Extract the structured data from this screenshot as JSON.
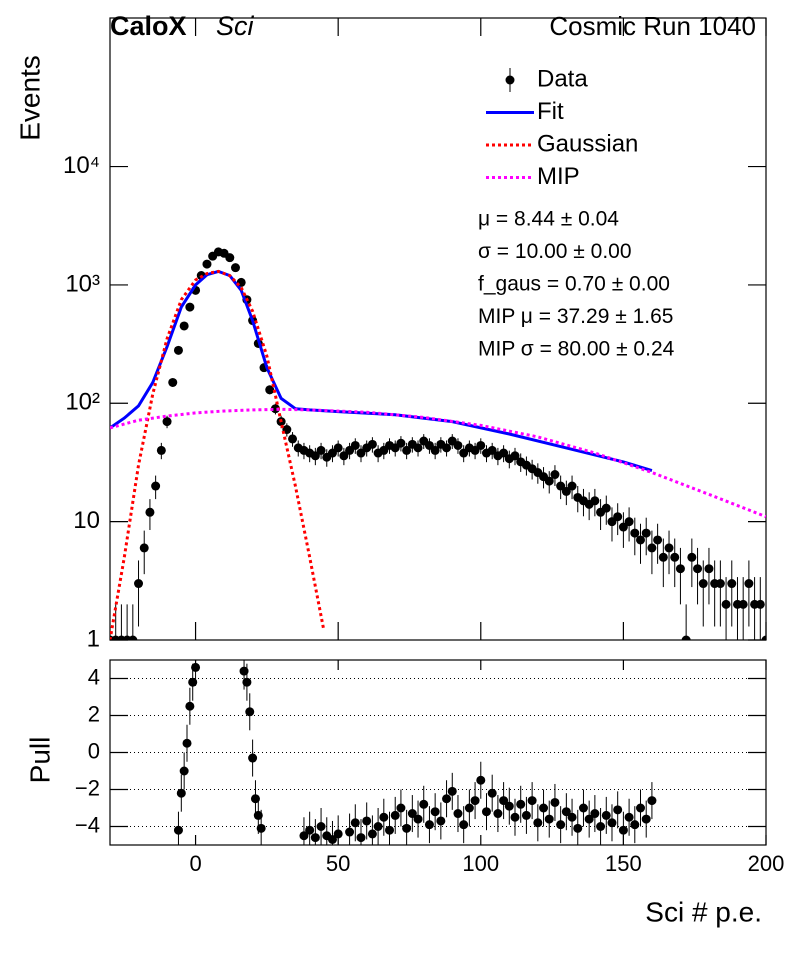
{
  "chart_data": [
    {
      "type": "scatter",
      "label_bold": "CaloX",
      "label_italic": "Sci",
      "run_label": "Cosmic Run 1040",
      "ylabel": "Events",
      "log_y": true,
      "xlim": [
        -30,
        200
      ],
      "ylim": [
        1,
        180000
      ],
      "yticks": [
        1,
        10,
        {
          "value": 100,
          "label": "10²"
        },
        {
          "value": 1000,
          "label": "10³"
        },
        {
          "value": 10000,
          "label": "10⁴"
        }
      ],
      "annotations": [
        "μ = 8.44 ± 0.04",
        "σ = 10.00 ± 0.00",
        "f_gaus = 0.70 ± 0.00",
        "MIP μ = 37.29 ± 1.65",
        "MIP σ = 80.00 ± 0.24"
      ],
      "legend": "upper right",
      "series": [
        {
          "name": "Data",
          "color": "#000000",
          "style": "points",
          "x": [
            -30,
            -28,
            -26,
            -24,
            -22,
            -20,
            -18,
            -16,
            -14,
            -12,
            -10,
            -8,
            -6,
            -4,
            -2,
            0,
            2,
            4,
            6,
            8,
            10,
            12,
            14,
            16,
            18,
            20,
            22,
            24,
            26,
            28,
            30,
            32,
            34,
            36,
            38,
            40,
            42,
            44,
            46,
            48,
            50,
            52,
            54,
            56,
            58,
            60,
            62,
            64,
            66,
            68,
            70,
            72,
            74,
            76,
            78,
            80,
            82,
            84,
            86,
            88,
            90,
            92,
            94,
            96,
            98,
            100,
            102,
            104,
            106,
            108,
            110,
            112,
            114,
            116,
            118,
            120,
            122,
            124,
            126,
            128,
            130,
            132,
            134,
            136,
            138,
            140,
            142,
            144,
            146,
            148,
            150,
            152,
            154,
            156,
            158,
            160,
            162,
            164,
            166,
            168,
            170,
            172,
            174,
            176,
            178,
            180,
            182,
            184,
            186,
            188,
            190,
            192,
            194,
            196,
            198,
            200
          ],
          "values": [
            1,
            1,
            1,
            1,
            1,
            3,
            6,
            12,
            20,
            40,
            70,
            150,
            280,
            450,
            650,
            900,
            1200,
            1500,
            1750,
            1900,
            1850,
            1700,
            1400,
            1050,
            750,
            500,
            320,
            200,
            130,
            90,
            70,
            60,
            50,
            42,
            40,
            38,
            36,
            40,
            35,
            38,
            42,
            36,
            40,
            44,
            38,
            42,
            45,
            38,
            40,
            44,
            42,
            46,
            40,
            45,
            42,
            48,
            44,
            40,
            45,
            42,
            48,
            44,
            38,
            42,
            40,
            44,
            38,
            40,
            36,
            38,
            34,
            36,
            32,
            30,
            28,
            26,
            24,
            22,
            25,
            20,
            18,
            20,
            16,
            15,
            14,
            15,
            12,
            13,
            10,
            11,
            9,
            10,
            8,
            7,
            8,
            6,
            7,
            5,
            6,
            5,
            4,
            1,
            5,
            4,
            3,
            4,
            3,
            3,
            2,
            3,
            2,
            2,
            3,
            2,
            2,
            1
          ],
          "errors": [
            1,
            1,
            1,
            1,
            1,
            1.7,
            2.4,
            3.5,
            4.5,
            6.3,
            8.4,
            12,
            17,
            21,
            25,
            30,
            35,
            39,
            42,
            44,
            43,
            41,
            37,
            32,
            27,
            22,
            18,
            14,
            11,
            9.5,
            8.4,
            7.7,
            7.1,
            6.5,
            6.3,
            6.2,
            6,
            6.3,
            5.9,
            6.2,
            6.5,
            6,
            6.3,
            6.6,
            6.2,
            6.5,
            6.7,
            6.2,
            6.3,
            6.6,
            6.5,
            6.8,
            6.3,
            6.7,
            6.5,
            6.9,
            6.6,
            6.3,
            6.7,
            6.5,
            6.9,
            6.6,
            6.2,
            6.5,
            6.3,
            6.6,
            6.2,
            6.3,
            6,
            6.2,
            5.8,
            6,
            5.7,
            5.5,
            5.3,
            5.1,
            4.9,
            4.7,
            5,
            4.5,
            4.2,
            4.5,
            4,
            3.9,
            3.7,
            3.9,
            3.5,
            3.6,
            3.2,
            3.3,
            3,
            3.2,
            2.8,
            2.6,
            2.8,
            2.4,
            2.6,
            2.2,
            2.4,
            2.2,
            2,
            1,
            2.2,
            2,
            1.7,
            2,
            1.7,
            1.7,
            1.4,
            1.7,
            1.4,
            1.4,
            1.7,
            1.4,
            1.4,
            1
          ]
        },
        {
          "name": "Fit",
          "color": "#0000ff",
          "style": "solid",
          "x": [
            -30,
            -25,
            -20,
            -15,
            -10,
            -5,
            0,
            4,
            8,
            12,
            16,
            20,
            25,
            30,
            35,
            40,
            50,
            70,
            90,
            110,
            130,
            150,
            160
          ],
          "values": [
            62,
            75,
            95,
            150,
            300,
            650,
            1000,
            1220,
            1300,
            1200,
            900,
            500,
            200,
            110,
            90,
            88,
            85,
            80,
            70,
            55,
            42,
            32,
            27
          ]
        },
        {
          "name": "Gaussian",
          "color": "#ff0000",
          "style": "dotted",
          "x": [
            -30,
            -25,
            -20,
            -15,
            -10,
            -5,
            0,
            4,
            8,
            12,
            16,
            20,
            25,
            30,
            35,
            40,
            45
          ],
          "values": [
            1,
            5,
            30,
            120,
            350,
            750,
            1100,
            1250,
            1300,
            1200,
            950,
            600,
            250,
            70,
            20,
            5,
            1.2
          ]
        },
        {
          "name": "MIP",
          "color": "#ff00ff",
          "style": "dotted",
          "x": [
            -30,
            -20,
            -10,
            0,
            10,
            20,
            30,
            40,
            60,
            80,
            100,
            120,
            140,
            160,
            180,
            200
          ],
          "values": [
            62,
            72,
            78,
            83,
            86,
            88,
            89,
            88,
            84,
            76,
            65,
            52,
            38,
            26,
            17,
            11
          ]
        }
      ]
    },
    {
      "type": "scatter",
      "ylabel": "Pull",
      "xlabel": "Sci # p.e.",
      "xlim": [
        -30,
        200
      ],
      "ylim": [
        -5,
        5
      ],
      "xticks": [
        0,
        50,
        100,
        150,
        200
      ],
      "yticks": [
        {
          "value": -4,
          "label": "−4"
        },
        {
          "value": -2,
          "label": "−2"
        },
        0,
        2,
        4
      ],
      "grid": true,
      "series": [
        {
          "name": "Pull",
          "color": "#000000",
          "error": 1,
          "x": [
            -6,
            -5,
            -4,
            -3,
            -2,
            -1,
            0,
            17,
            18,
            19,
            20,
            21,
            22,
            23,
            38,
            40,
            42,
            44,
            46,
            48,
            50,
            54,
            56,
            58,
            60,
            62,
            64,
            66,
            68,
            70,
            72,
            74,
            76,
            78,
            80,
            82,
            84,
            86,
            88,
            90,
            92,
            94,
            96,
            98,
            100,
            102,
            104,
            106,
            108,
            110,
            112,
            114,
            116,
            118,
            120,
            122,
            124,
            126,
            128,
            130,
            132,
            134,
            136,
            138,
            140,
            142,
            144,
            146,
            148,
            150,
            152,
            154,
            156,
            158,
            160
          ],
          "values": [
            -4.2,
            -2.2,
            -1,
            0.5,
            2.5,
            3.8,
            4.6,
            4.4,
            3.8,
            2.2,
            -0.3,
            -2.5,
            -3.4,
            -4.1,
            -4.5,
            -4.2,
            -4.6,
            -4.0,
            -4.5,
            -4.7,
            -4.4,
            -4.3,
            -3.8,
            -4.6,
            -3.7,
            -4.4,
            -4.0,
            -3.5,
            -4.2,
            -3.4,
            -3.0,
            -4.1,
            -3.3,
            -3.6,
            -2.8,
            -3.9,
            -3.2,
            -3.7,
            -2.5,
            -2.1,
            -3.3,
            -3.9,
            -3.0,
            -2.6,
            -1.5,
            -3.2,
            -2.2,
            -3.3,
            -2.6,
            -2.9,
            -3.5,
            -2.8,
            -3.4,
            -2.6,
            -3.8,
            -3.0,
            -3.6,
            -2.7,
            -3.9,
            -3.2,
            -3.5,
            -4.1,
            -3.0,
            -3.6,
            -3.3,
            -4.0,
            -3.4,
            -3.8,
            -3.1,
            -4.2,
            -3.5,
            -3.9,
            -3.0,
            -3.6,
            -2.6
          ]
        }
      ]
    }
  ]
}
